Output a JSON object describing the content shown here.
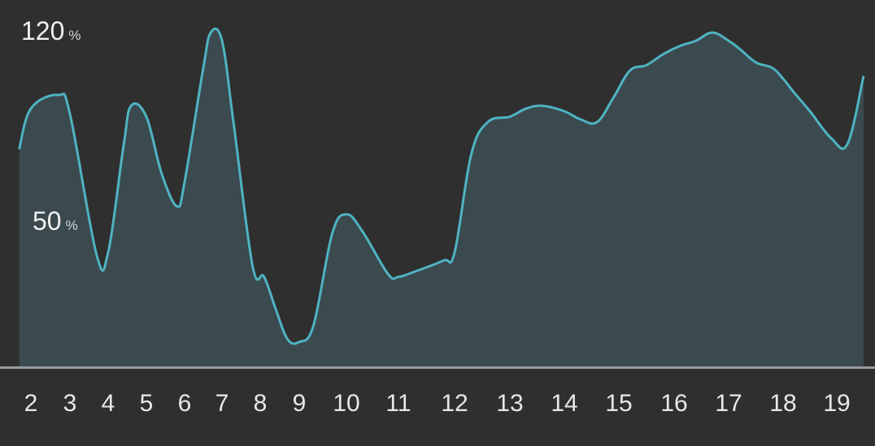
{
  "chart_data": {
    "type": "area",
    "x": [
      1.7,
      2,
      2.7,
      3,
      3.7,
      4,
      4.4,
      4.6,
      5,
      5.4,
      5.8,
      6,
      6.5,
      6.7,
      7,
      7.3,
      7.8,
      8.1,
      8.4,
      8.7,
      9,
      9.3,
      9.7,
      10,
      10.3,
      10.8,
      11,
      11.3,
      11.8,
      12,
      12.3,
      12.6,
      13,
      13.3,
      13.6,
      14,
      14.3,
      14.6,
      14.9,
      15.2,
      15.5,
      15.8,
      16.1,
      16.4,
      16.7,
      17,
      17.2,
      17.5,
      17.8,
      18,
      18.2,
      18.5,
      18.9,
      19.2,
      19.5
    ],
    "series": [
      {
        "values": [
          80,
          95,
          100,
          93,
          41,
          42,
          81,
          96,
          92,
          71,
          59,
          68,
          110,
          123,
          120,
          90,
          37,
          33,
          21,
          10,
          9,
          15,
          49,
          56,
          50,
          34,
          33,
          35,
          39,
          42,
          78,
          90,
          92,
          95,
          96,
          94,
          91,
          90,
          99,
          109,
          111,
          115,
          118,
          120,
          123,
          120,
          117,
          112,
          110,
          106,
          101,
          94,
          84,
          82,
          107
        ]
      }
    ],
    "categories": [
      "2",
      "3",
      "4",
      "5",
      "6",
      "7",
      "8",
      "9",
      "10",
      "11",
      "12",
      "13",
      "14",
      "15",
      "16",
      "17",
      "18",
      "19"
    ],
    "ylim": [
      0,
      135
    ],
    "y_marks": [
      {
        "num": "120",
        "unit": "%",
        "value": 120
      },
      {
        "num": "50",
        "unit": "%",
        "value": 50
      }
    ],
    "grid": false,
    "legend": "none",
    "colors": {
      "background": "#2f2f2f",
      "line": "#4fb3c3",
      "fill": "#3a4a4f",
      "axis": "#9a9a9a",
      "text": "#e8e8e8"
    }
  }
}
